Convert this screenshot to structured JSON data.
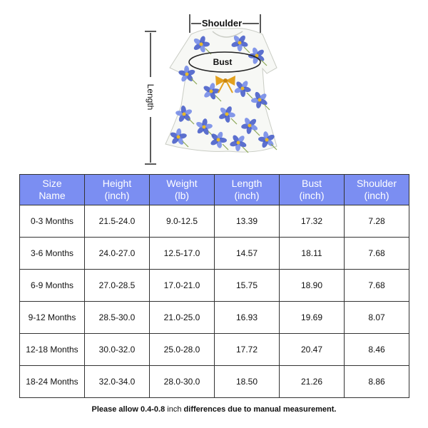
{
  "diagram": {
    "shoulder_label": "Shoulder",
    "bust_label": "Bust",
    "length_label": "Length",
    "dress_image": "blue-floral-short-sleeve-baby-dress",
    "colors": {
      "flower": "#6f86e6",
      "flower_dark": "#3f57c7",
      "center": "#e8b92a",
      "leaf": "#8aa653",
      "bow": "#e3a11e",
      "ink": "#222222"
    }
  },
  "table": {
    "header_color": "#7b8ef2",
    "headers": [
      [
        "Size",
        "Name"
      ],
      [
        "Height",
        "(inch)"
      ],
      [
        "Weight",
        "(lb)"
      ],
      [
        "Length",
        "(inch)"
      ],
      [
        "Bust",
        "(inch)"
      ],
      [
        "Shoulder",
        "(inch)"
      ]
    ],
    "rows": [
      [
        "0-3 Months",
        "21.5-24.0",
        "9.0-12.5",
        "13.39",
        "17.32",
        "7.28"
      ],
      [
        "3-6 Months",
        "24.0-27.0",
        "12.5-17.0",
        "14.57",
        "18.11",
        "7.68"
      ],
      [
        "6-9 Months",
        "27.0-28.5",
        "17.0-21.0",
        "15.75",
        "18.90",
        "7.68"
      ],
      [
        "9-12 Months",
        "28.5-30.0",
        "21.0-25.0",
        "16.93",
        "19.69",
        "8.07"
      ],
      [
        "12-18 Months",
        "30.0-32.0",
        "25.0-28.0",
        "17.72",
        "20.47",
        "8.46"
      ],
      [
        "18-24 Months",
        "32.0-34.0",
        "28.0-30.0",
        "18.50",
        "21.26",
        "8.86"
      ]
    ]
  },
  "note": {
    "before": "Please allow 0.4-0.8",
    "unit": " inch",
    "after": " differences due to manual measurement."
  }
}
